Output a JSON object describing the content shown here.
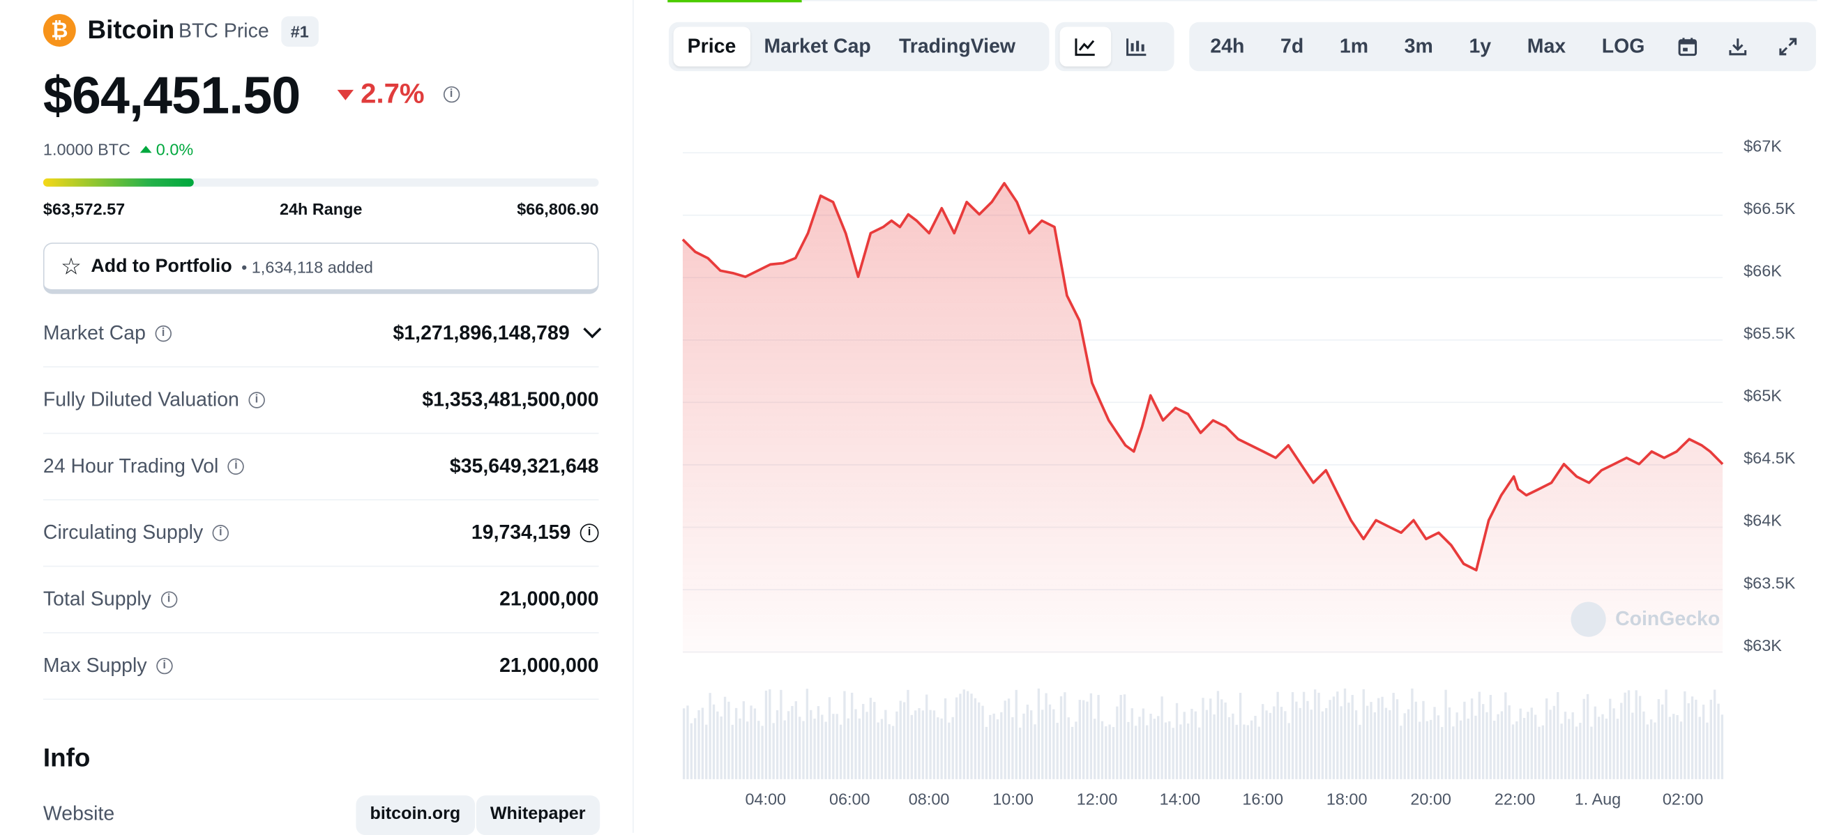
{
  "coin": {
    "name": "Bitcoin",
    "symbol_label": "BTC Price",
    "rank": "#1",
    "logo_glyph": "₿",
    "price": "$64,451.50",
    "change_24h": "2.7%",
    "btc_amount": "1.0000 BTC",
    "btc_change": "0.0%"
  },
  "range": {
    "low": "$63,572.57",
    "label": "24h Range",
    "high": "$66,806.90",
    "fill_fraction": 0.27
  },
  "portfolio": {
    "label": "Add to Portfolio",
    "added": "• 1,634,118 added"
  },
  "stats": [
    {
      "label": "Market Cap",
      "value": "$1,271,896,148,789"
    },
    {
      "label": "Fully Diluted Valuation",
      "value": "$1,353,481,500,000"
    },
    {
      "label": "24 Hour Trading Vol",
      "value": "$35,649,321,648"
    },
    {
      "label": "Circulating Supply",
      "value": "19,734,159"
    },
    {
      "label": "Total Supply",
      "value": "21,000,000"
    },
    {
      "label": "Max Supply",
      "value": "21,000,000"
    }
  ],
  "info": {
    "title": "Info",
    "website_label": "Website",
    "links": [
      "bitcoin.org",
      "Whitepaper"
    ]
  },
  "chart_tabs": [
    "Price",
    "Market Cap",
    "TradingView"
  ],
  "range_tabs": [
    "24h",
    "7d",
    "1m",
    "3m",
    "1y",
    "Max",
    "LOG"
  ],
  "watermark": "CoinGecko",
  "colors": {
    "line": "#e83b3b",
    "accent": "#4bcc00",
    "negative": "#e03c3c",
    "positive": "#00a83e"
  },
  "chart_data": {
    "type": "line",
    "title": "",
    "xlabel": "",
    "ylabel": "",
    "x_ticks": [
      "04:00",
      "06:00",
      "08:00",
      "10:00",
      "12:00",
      "14:00",
      "16:00",
      "18:00",
      "20:00",
      "22:00",
      "1. Aug",
      "02:00"
    ],
    "y_ticks": [
      "$67K",
      "$66.5K",
      "$66K",
      "$65.5K",
      "$65K",
      "$64.5K",
      "$64K",
      "$63.5K",
      "$63K"
    ],
    "ylim": [
      63000,
      67000
    ],
    "xlim_hours": [
      2.0,
      26.9
    ],
    "series": [
      {
        "x": [
          2.0,
          2.3,
          2.6,
          2.9,
          3.2,
          3.5,
          3.8,
          4.1,
          4.4,
          4.7,
          5.0,
          5.3,
          5.6,
          5.9,
          6.2,
          6.5,
          6.8,
          7.0,
          7.2,
          7.4,
          7.6,
          7.9,
          8.2,
          8.5,
          8.8,
          9.1,
          9.4,
          9.7,
          10.0,
          10.3,
          10.6,
          10.9,
          11.2,
          11.5,
          11.8,
          12.0,
          12.2,
          12.4,
          12.6,
          12.8,
          13.0,
          13.2,
          13.5,
          13.8,
          14.1,
          14.4,
          14.7,
          15.0,
          15.3,
          15.6,
          15.9,
          16.2,
          16.5,
          16.8,
          17.1,
          17.4,
          17.7,
          18.0,
          18.3,
          18.6,
          18.9,
          19.2,
          19.5,
          19.8,
          20.1,
          20.4,
          20.7,
          21.0,
          21.3,
          21.6,
          21.9,
          22.0,
          22.2,
          22.5,
          22.8,
          23.1,
          23.4,
          23.7,
          24.0,
          24.3,
          24.6,
          24.9,
          25.2,
          25.5,
          25.8,
          26.1,
          26.4,
          26.6,
          26.9
        ],
        "y": [
          66250,
          66150,
          66100,
          66000,
          65980,
          65950,
          66000,
          66050,
          66060,
          66100,
          66300,
          66600,
          66550,
          66300,
          65950,
          66300,
          66350,
          66400,
          66350,
          66450,
          66400,
          66300,
          66500,
          66300,
          66550,
          66450,
          66550,
          66700,
          66550,
          66300,
          66400,
          66350,
          65800,
          65600,
          65100,
          64950,
          64800,
          64700,
          64600,
          64550,
          64750,
          65000,
          64800,
          64900,
          64850,
          64700,
          64800,
          64750,
          64650,
          64600,
          64550,
          64500,
          64600,
          64450,
          64300,
          64400,
          64200,
          64000,
          63850,
          64000,
          63950,
          63900,
          64000,
          63850,
          63900,
          63800,
          63650,
          63600,
          64000,
          64200,
          64350,
          64250,
          64200,
          64250,
          64300,
          64450,
          64350,
          64300,
          64400,
          64450,
          64500,
          64450,
          64550,
          64500,
          64550,
          64650,
          64600,
          64550,
          64450
        ]
      }
    ],
    "grid": true,
    "legend": "none",
    "volume_bars": true
  }
}
